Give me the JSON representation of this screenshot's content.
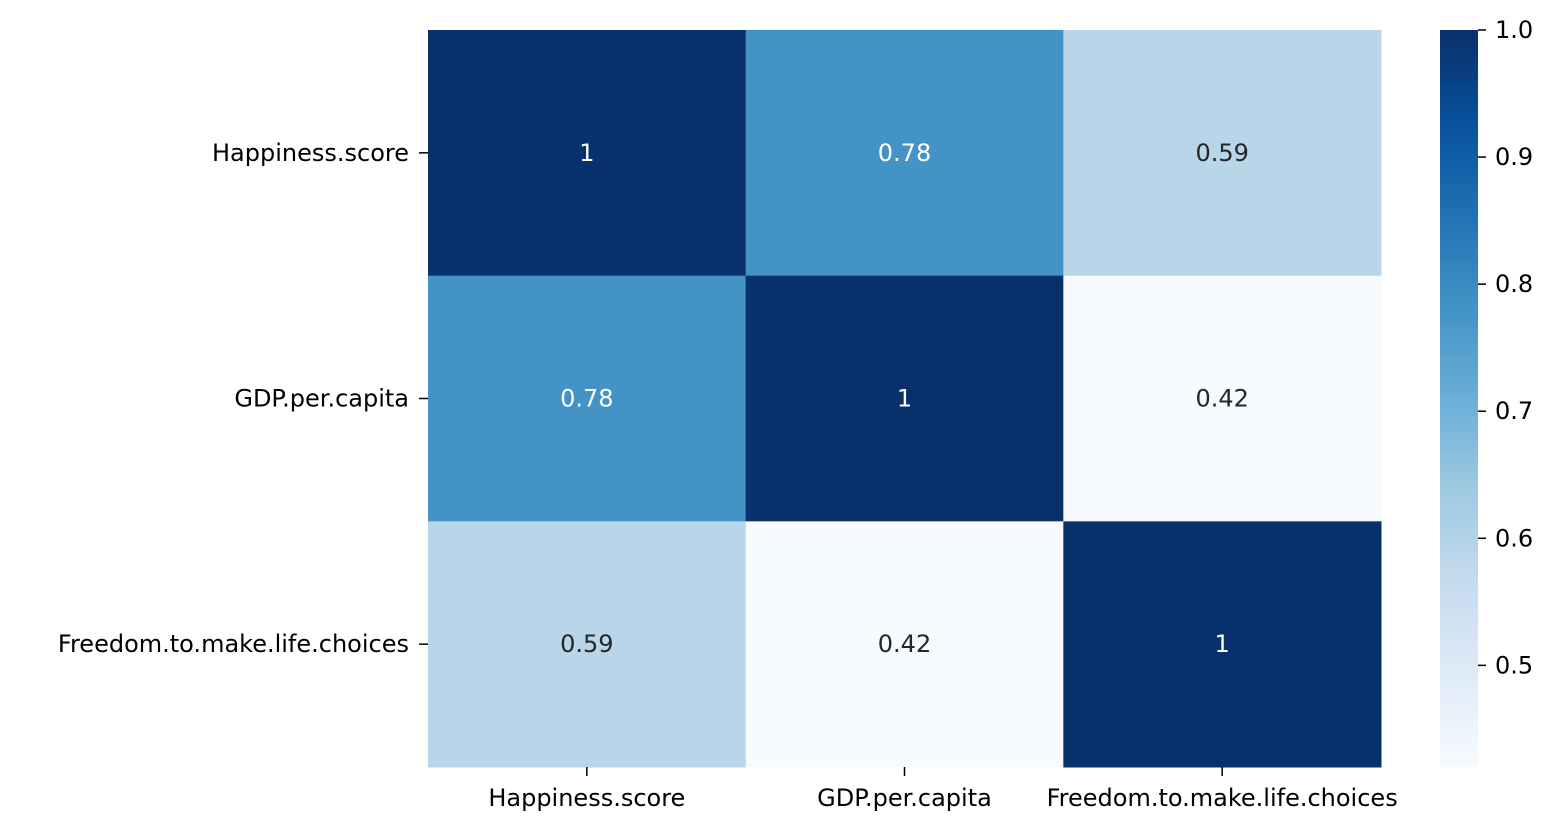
{
  "chart_data": {
    "type": "heatmap",
    "title": "",
    "xlabel": "",
    "ylabel": "",
    "x_categories": [
      "Happiness.score",
      "GDP.per.capita",
      "Freedom.to.make.life.choices"
    ],
    "y_categories": [
      "Happiness.score",
      "GDP.per.capita",
      "Freedom.to.make.life.choices"
    ],
    "values": [
      [
        1,
        0.78,
        0.59
      ],
      [
        0.78,
        1,
        0.42
      ],
      [
        0.59,
        0.42,
        1
      ]
    ],
    "annotations": [
      [
        "1",
        "0.78",
        "0.59"
      ],
      [
        "0.78",
        "1",
        "0.42"
      ],
      [
        "0.59",
        "0.42",
        "1"
      ]
    ],
    "colormap": "Blues",
    "colorbar": {
      "vmin": 0.42,
      "vmax": 1.0,
      "ticks": [
        0.5,
        0.6,
        0.7,
        0.8,
        0.9,
        1.0
      ],
      "tick_labels": [
        "0.5",
        "0.6",
        "0.7",
        "0.8",
        "0.9",
        "1.0"
      ]
    },
    "annotation_colors": {
      "dark": "#262626",
      "light": "#ffffff"
    }
  }
}
